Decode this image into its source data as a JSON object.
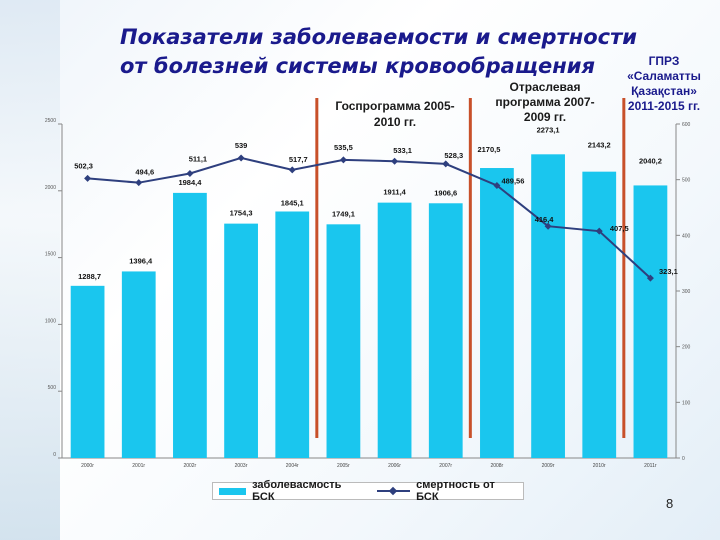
{
  "title": {
    "line1": "Показатели заболеваемости и смертности",
    "line2": "от болезней системы кровообращения"
  },
  "annotations": {
    "gosprogramma": "Госпрограмма 2005-2010 гг.",
    "otraslevaya": "Отраслевая программа 2007-2009 гг.",
    "gprz_title": "ГПРЗ",
    "gprz_name": "«Саламатты Қазақстан»",
    "gprz_years": "2011-2015 гг."
  },
  "page_number": "8",
  "legend": {
    "bars": "заболевасмость БСК",
    "line": "смертность от БСК"
  },
  "colors": {
    "bar": "#1ac6ee",
    "line": "#2e3f7e",
    "marker_lines": "#c8502a",
    "title": "#1a1a8c"
  },
  "chart_data": {
    "type": "bar",
    "categories": [
      "2000г",
      "2001г",
      "2002г",
      "2003г",
      "2004г",
      "2005г",
      "2006г",
      "2007г",
      "2008г",
      "2009г",
      "2010г",
      "2011г"
    ],
    "series": [
      {
        "name": "заболевасмость БСК",
        "type": "bar",
        "axis": "left",
        "values": [
          1288.7,
          1396.4,
          1984.4,
          1754.3,
          1845.1,
          1749.1,
          1911.4,
          1906.6,
          2170.5,
          2273.1,
          2143.2,
          2040.2
        ],
        "labels": [
          "1288,7",
          "1396,4",
          "1984,4",
          "1754,3",
          "1845,1",
          "1749,1",
          "1911,4",
          "1906,6",
          "2170,5",
          "2273,1",
          "2143,2",
          "2040,2"
        ]
      },
      {
        "name": "смертность от БСК",
        "type": "line",
        "axis": "right",
        "values": [
          502.3,
          494.6,
          511.1,
          539,
          517.7,
          535.5,
          533.1,
          528.3,
          489.56,
          416.4,
          407.5,
          323.1
        ],
        "labels": [
          "502,3",
          "494,6",
          "511,1",
          "539",
          "517,7",
          "535,5",
          "533,1",
          "528,3",
          "489,56",
          "416,4",
          "407,5",
          "323,1"
        ]
      }
    ],
    "left_axis": {
      "ylim": [
        0,
        2500
      ],
      "ticks": [
        "0",
        "500",
        "1000",
        "1500",
        "2000",
        "2500"
      ]
    },
    "right_axis": {
      "ylim": [
        0,
        600
      ],
      "ticks": [
        "0",
        "100",
        "200",
        "300",
        "400",
        "500",
        "600"
      ]
    },
    "markers": [
      "2005 start",
      "2007 start",
      "2011 start"
    ],
    "legend_position": "bottom"
  }
}
